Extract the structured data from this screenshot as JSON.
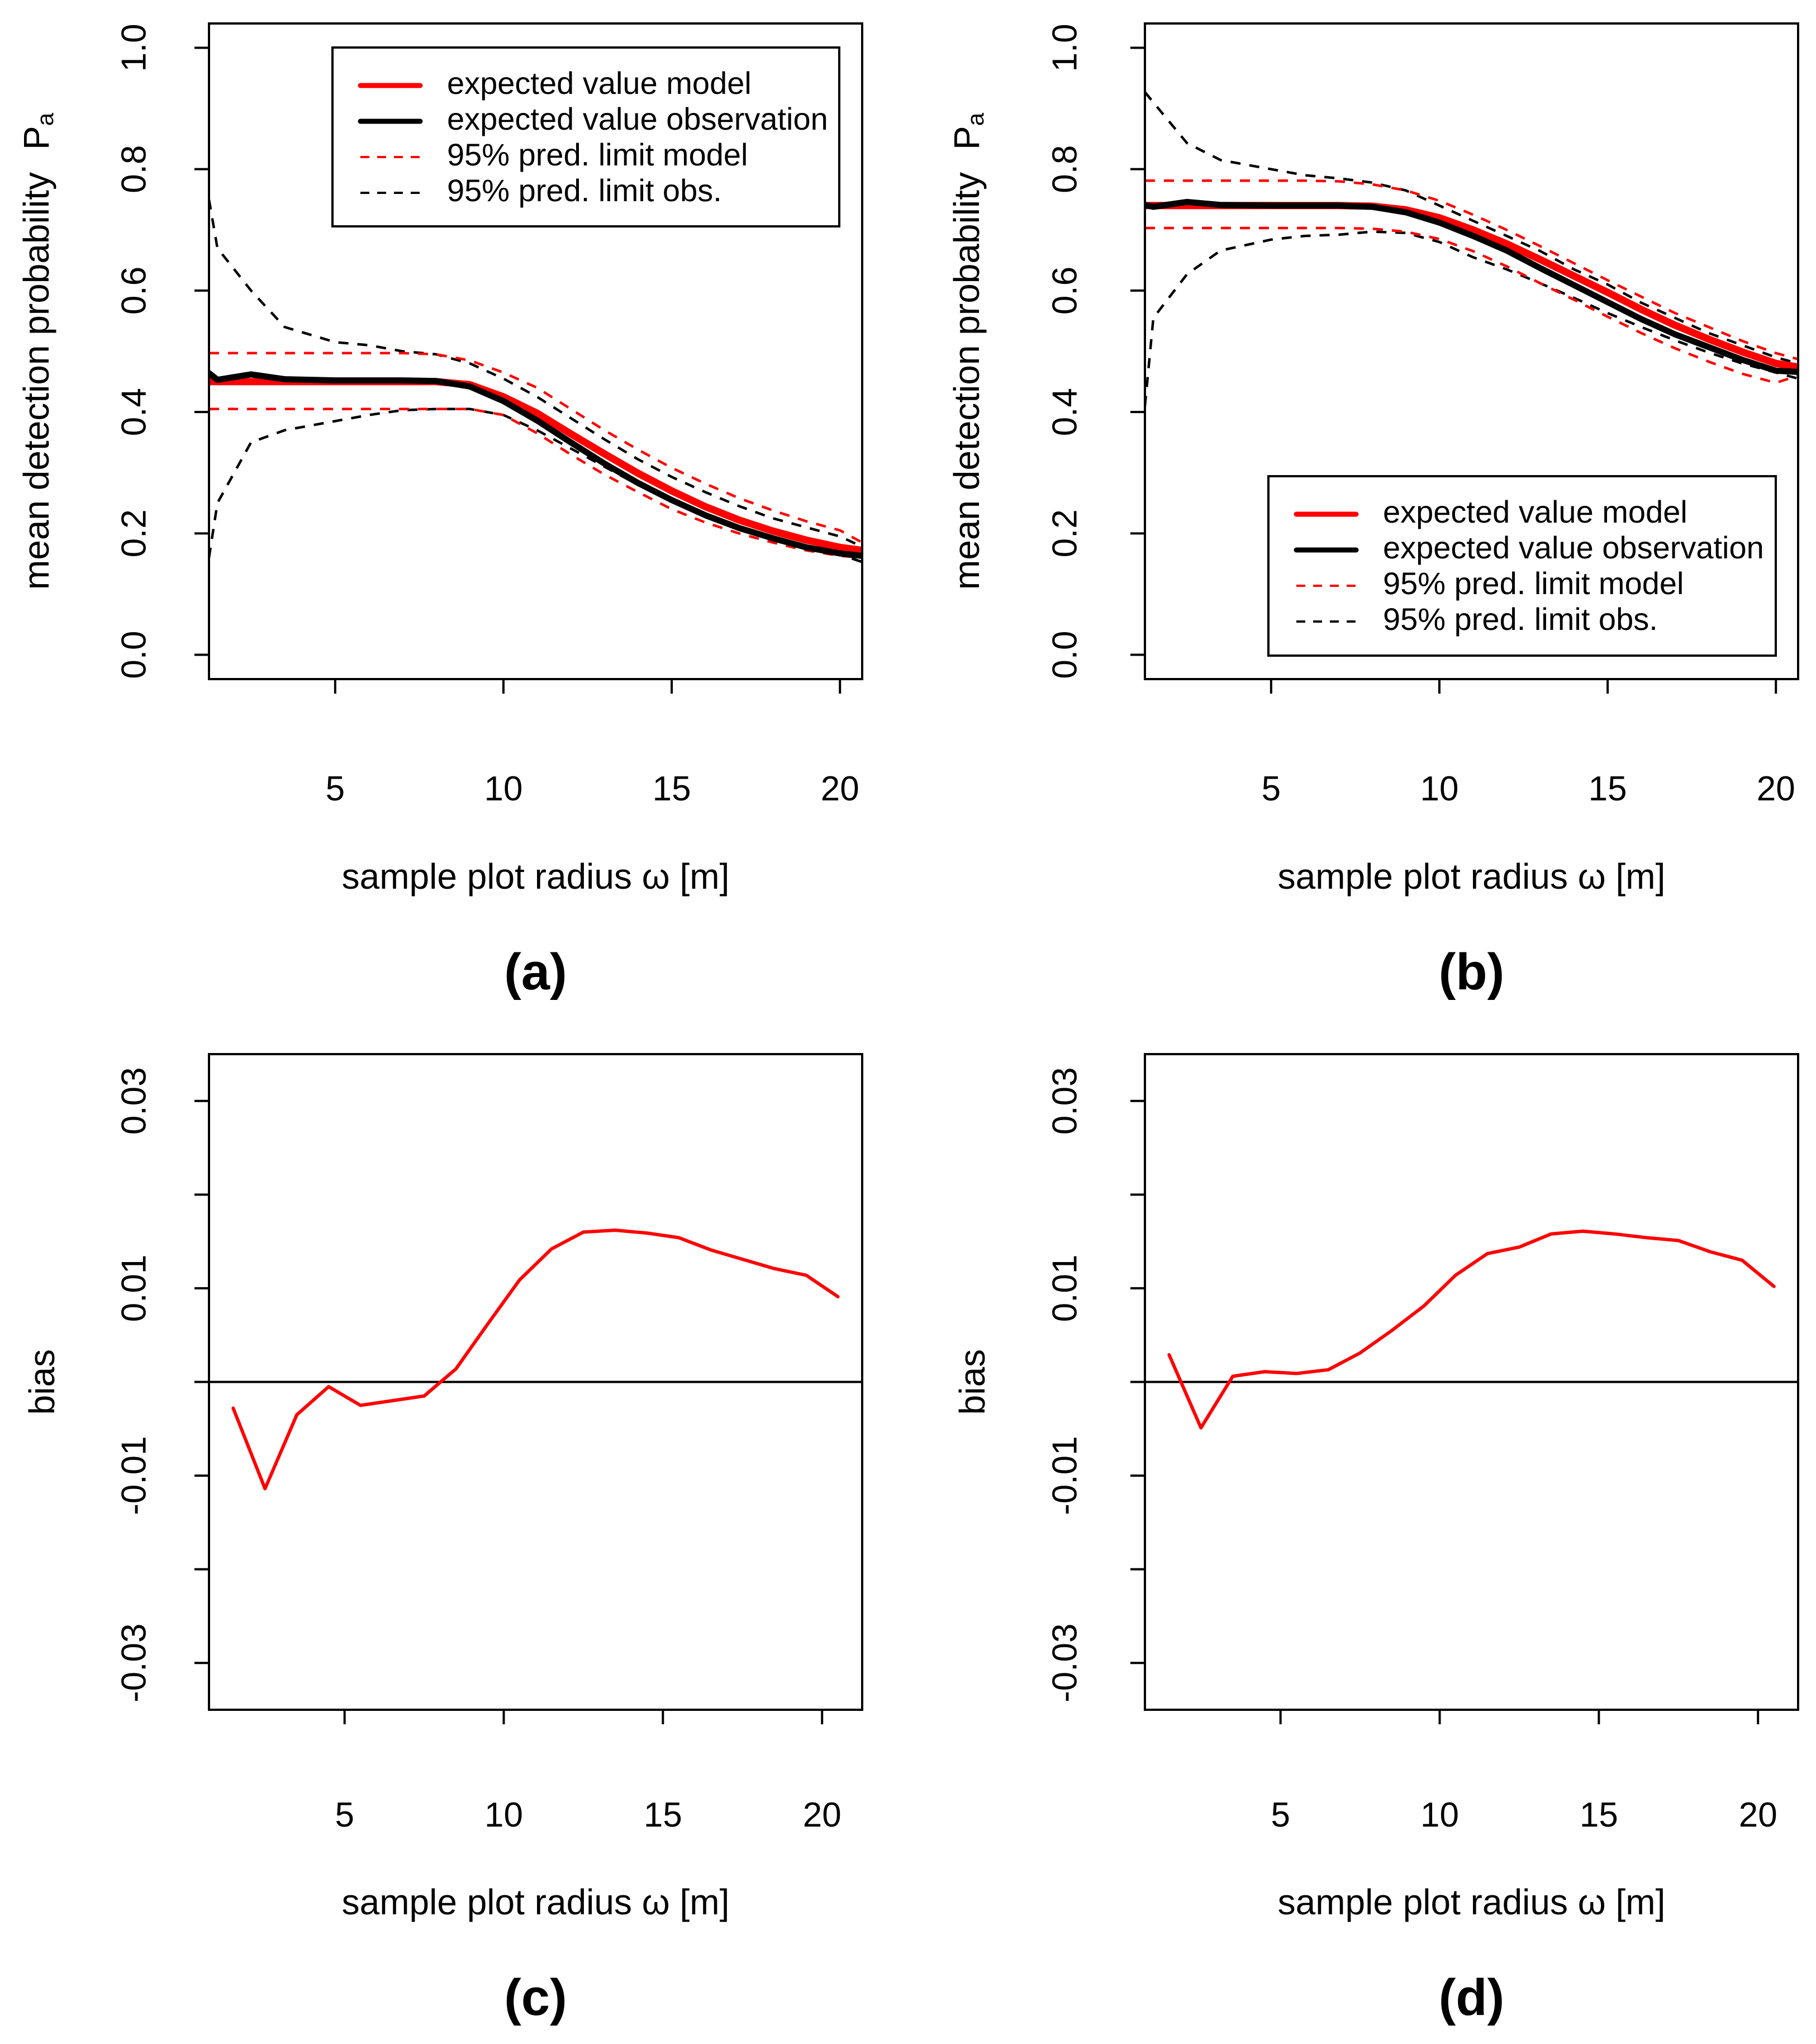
{
  "colors": {
    "model": "#ff0000",
    "observation": "#000000"
  },
  "chart_data": [
    {
      "id": "a",
      "type": "line",
      "panel_label": "(a)",
      "xlabel": "sample plot radius ω [m]",
      "ylabel": "mean detection probability",
      "ylabel_symbol": "P",
      "ylabel_subscript": "a",
      "xlim": [
        1.25,
        20.66
      ],
      "ylim": [
        -0.04,
        1.04
      ],
      "xticks": [
        5,
        10,
        15,
        20
      ],
      "xtick_labels": [
        "5",
        "10",
        "15",
        "20"
      ],
      "yticks": [
        0,
        0.2,
        0.4,
        0.6,
        0.8,
        1.0
      ],
      "ytick_labels": [
        "0.0",
        "0.2",
        "0.4",
        "0.6",
        "0.8",
        "1.0"
      ],
      "legend": {
        "position": "top-right",
        "entries": [
          "expected value model",
          "expected value observation",
          "95% pred. limit model",
          "95% pred. limit obs."
        ]
      },
      "x": [
        1.25,
        1.5,
        2.5,
        3.5,
        5,
        6,
        7,
        8,
        9,
        10,
        11,
        12,
        13,
        14,
        15,
        16,
        17,
        18,
        19,
        20,
        20.66
      ],
      "series": [
        {
          "name": "95% pred. limit obs. upper",
          "style": "obs-dash",
          "values": [
            0.75,
            0.67,
            0.6,
            0.54,
            0.515,
            0.51,
            0.5,
            0.495,
            0.48,
            0.455,
            0.425,
            0.39,
            0.355,
            0.322,
            0.293,
            0.268,
            0.245,
            0.225,
            0.21,
            0.195,
            0.178
          ]
        },
        {
          "name": "95% pred. limit obs. lower",
          "style": "obs-dash",
          "values": [
            0.16,
            0.25,
            0.35,
            0.37,
            0.385,
            0.395,
            0.403,
            0.405,
            0.405,
            0.395,
            0.37,
            0.34,
            0.31,
            0.28,
            0.253,
            0.23,
            0.21,
            0.193,
            0.178,
            0.165,
            0.153
          ]
        },
        {
          "name": "95% pred. limit model upper",
          "style": "model-dash",
          "values": [
            0.497,
            0.497,
            0.497,
            0.497,
            0.497,
            0.497,
            0.497,
            0.495,
            0.485,
            0.465,
            0.44,
            0.405,
            0.37,
            0.338,
            0.308,
            0.282,
            0.258,
            0.238,
            0.22,
            0.205,
            0.185
          ]
        },
        {
          "name": "95% pred. limit model lower",
          "style": "model-dash",
          "values": [
            0.405,
            0.405,
            0.405,
            0.405,
            0.405,
            0.405,
            0.405,
            0.405,
            0.405,
            0.395,
            0.365,
            0.33,
            0.297,
            0.268,
            0.24,
            0.218,
            0.2,
            0.185,
            0.172,
            0.163,
            0.16
          ]
        },
        {
          "name": "expected value model",
          "style": "model",
          "values": [
            0.45,
            0.45,
            0.45,
            0.45,
            0.45,
            0.45,
            0.45,
            0.45,
            0.445,
            0.425,
            0.398,
            0.364,
            0.331,
            0.299,
            0.27,
            0.244,
            0.222,
            0.204,
            0.189,
            0.177,
            0.172
          ]
        },
        {
          "name": "expected value observation",
          "style": "obs",
          "values": [
            0.464,
            0.453,
            0.462,
            0.454,
            0.452,
            0.452,
            0.452,
            0.451,
            0.442,
            0.418,
            0.386,
            0.35,
            0.315,
            0.283,
            0.255,
            0.23,
            0.209,
            0.192,
            0.177,
            0.167,
            0.163
          ]
        }
      ]
    },
    {
      "id": "b",
      "type": "line",
      "panel_label": "(b)",
      "xlabel": "sample plot radius ω [m]",
      "ylabel": "mean detection probability",
      "ylabel_symbol": "P",
      "ylabel_subscript": "a",
      "xlim": [
        1.25,
        20.66
      ],
      "ylim": [
        -0.04,
        1.04
      ],
      "xticks": [
        5,
        10,
        15,
        20
      ],
      "xtick_labels": [
        "5",
        "10",
        "15",
        "20"
      ],
      "yticks": [
        0,
        0.2,
        0.4,
        0.6,
        0.8,
        1.0
      ],
      "ytick_labels": [
        "0.0",
        "0.2",
        "0.4",
        "0.6",
        "0.8",
        "1.0"
      ],
      "legend": {
        "position": "bottom-right",
        "entries": [
          "expected value model",
          "expected value observation",
          "95% pred. limit model",
          "95% pred. limit obs."
        ]
      },
      "x": [
        1.25,
        1.5,
        2.5,
        3.5,
        5,
        6,
        7,
        8,
        9,
        10,
        11,
        12,
        13,
        14,
        15,
        16,
        17,
        18,
        19,
        20,
        20.66
      ],
      "series": [
        {
          "name": "95% pred. limit obs. upper",
          "style": "obs-dash",
          "values": [
            0.927,
            0.91,
            0.843,
            0.815,
            0.8,
            0.79,
            0.785,
            0.778,
            0.765,
            0.74,
            0.715,
            0.69,
            0.665,
            0.635,
            0.61,
            0.58,
            0.555,
            0.53,
            0.51,
            0.49,
            0.48
          ]
        },
        {
          "name": "95% pred. limit obs. lower",
          "style": "obs-dash",
          "values": [
            0.41,
            0.555,
            0.627,
            0.666,
            0.684,
            0.69,
            0.692,
            0.697,
            0.695,
            0.68,
            0.655,
            0.635,
            0.612,
            0.588,
            0.563,
            0.54,
            0.518,
            0.498,
            0.48,
            0.465,
            0.455
          ]
        },
        {
          "name": "95% pred. limit model upper",
          "style": "model-dash",
          "values": [
            0.781,
            0.781,
            0.781,
            0.781,
            0.781,
            0.781,
            0.78,
            0.775,
            0.765,
            0.748,
            0.725,
            0.7,
            0.673,
            0.645,
            0.617,
            0.59,
            0.563,
            0.54,
            0.517,
            0.497,
            0.487
          ]
        },
        {
          "name": "95% pred. limit model lower",
          "style": "model-dash",
          "values": [
            0.703,
            0.703,
            0.703,
            0.703,
            0.703,
            0.703,
            0.703,
            0.702,
            0.697,
            0.685,
            0.665,
            0.64,
            0.612,
            0.585,
            0.557,
            0.53,
            0.505,
            0.483,
            0.463,
            0.448,
            0.46
          ]
        },
        {
          "name": "expected value model",
          "style": "model",
          "values": [
            0.74,
            0.74,
            0.74,
            0.74,
            0.74,
            0.74,
            0.74,
            0.739,
            0.733,
            0.72,
            0.7,
            0.677,
            0.651,
            0.624,
            0.597,
            0.569,
            0.543,
            0.52,
            0.499,
            0.48,
            0.474
          ]
        },
        {
          "name": "expected value observation",
          "style": "obs",
          "values": [
            0.741,
            0.738,
            0.746,
            0.741,
            0.74,
            0.74,
            0.74,
            0.738,
            0.729,
            0.712,
            0.69,
            0.666,
            0.637,
            0.609,
            0.581,
            0.553,
            0.528,
            0.507,
            0.486,
            0.468,
            0.466
          ]
        }
      ]
    },
    {
      "id": "c",
      "type": "line",
      "panel_label": "(c)",
      "xlabel": "sample plot radius ω [m]",
      "ylabel": "bias",
      "xlim": [
        0.74,
        21.26
      ],
      "ylim": [
        -0.035,
        0.035
      ],
      "xticks": [
        5,
        10,
        15,
        20
      ],
      "xtick_labels": [
        "5",
        "10",
        "15",
        "20"
      ],
      "yticks": [
        -0.03,
        -0.02,
        -0.01,
        0,
        0.01,
        0.02,
        0.03
      ],
      "ytick_label_values": [
        -0.03,
        -0.01,
        0.01,
        0.03
      ],
      "ytick_labels": [
        "-0.03",
        "-0.01",
        "0.01",
        "0.03"
      ],
      "hline": 0,
      "x": [
        1.5,
        2.5,
        3.5,
        4.5,
        5.5,
        6.5,
        7.5,
        8.5,
        9.5,
        10.5,
        11.5,
        12.5,
        13.5,
        14.5,
        15.5,
        16.5,
        17.5,
        18.5,
        19.5,
        20.5
      ],
      "series": [
        {
          "name": "bias",
          "style": "bias",
          "values": [
            -0.0028,
            -0.0114,
            -0.0035,
            -0.0005,
            -0.0025,
            -0.002,
            -0.0015,
            0.0014,
            0.0062,
            0.0109,
            0.0142,
            0.016,
            0.0162,
            0.0159,
            0.0154,
            0.0141,
            0.0131,
            0.0121,
            0.0114,
            0.0091
          ]
        }
      ]
    },
    {
      "id": "d",
      "type": "line",
      "panel_label": "(d)",
      "xlabel": "sample plot radius ω [m]",
      "ylabel": "bias",
      "xlim": [
        0.74,
        21.26
      ],
      "ylim": [
        -0.035,
        0.035
      ],
      "xticks": [
        5,
        10,
        15,
        20
      ],
      "xtick_labels": [
        "5",
        "10",
        "15",
        "20"
      ],
      "yticks": [
        -0.03,
        -0.02,
        -0.01,
        0,
        0.01,
        0.02,
        0.03
      ],
      "ytick_label_values": [
        -0.03,
        -0.01,
        0.01,
        0.03
      ],
      "ytick_labels": [
        "-0.03",
        "-0.01",
        "0.01",
        "0.03"
      ],
      "hline": 0,
      "x": [
        1.5,
        2.5,
        3.5,
        4.5,
        5.5,
        6.5,
        7.5,
        8.5,
        9.5,
        10.5,
        11.5,
        12.5,
        13.5,
        14.5,
        15.5,
        16.5,
        17.5,
        18.5,
        19.5,
        20.5
      ],
      "series": [
        {
          "name": "bias",
          "style": "bias",
          "values": [
            0.0029,
            -0.0049,
            0.0006,
            0.0011,
            0.0009,
            0.0013,
            0.0031,
            0.0055,
            0.0081,
            0.0114,
            0.0137,
            0.0144,
            0.0158,
            0.0161,
            0.0158,
            0.0154,
            0.0151,
            0.0139,
            0.013,
            0.0102
          ]
        }
      ]
    }
  ]
}
